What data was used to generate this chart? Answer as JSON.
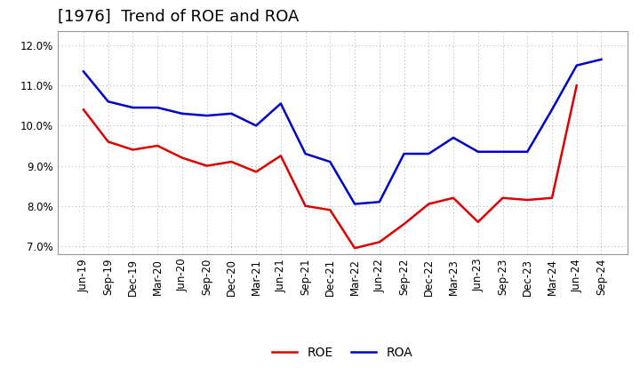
{
  "title": "[1976]  Trend of ROE and ROA",
  "labels": [
    "Jun-19",
    "Sep-19",
    "Dec-19",
    "Mar-20",
    "Jun-20",
    "Sep-20",
    "Dec-20",
    "Mar-21",
    "Jun-21",
    "Sep-21",
    "Dec-21",
    "Mar-22",
    "Jun-22",
    "Sep-22",
    "Dec-22",
    "Mar-23",
    "Jun-23",
    "Sep-23",
    "Dec-23",
    "Mar-24",
    "Jun-24",
    "Sep-24"
  ],
  "ROE": [
    10.4,
    9.6,
    9.4,
    9.5,
    9.2,
    9.0,
    9.1,
    8.85,
    9.25,
    8.0,
    7.9,
    6.95,
    7.1,
    7.55,
    8.05,
    8.2,
    7.6,
    8.2,
    8.15,
    8.2,
    11.0,
    null
  ],
  "ROA": [
    11.35,
    10.6,
    10.45,
    10.45,
    10.3,
    10.25,
    10.3,
    10.0,
    10.55,
    9.3,
    9.1,
    8.05,
    8.1,
    9.3,
    9.3,
    9.7,
    9.35,
    9.35,
    9.35,
    10.4,
    11.5,
    11.65
  ],
  "ROE_color": "#dd0000",
  "ROA_color": "#0000cc",
  "bg_color": "#ffffff",
  "plot_bg_color": "#ffffff",
  "grid_color": "#aaaaaa",
  "ylim": [
    6.8,
    12.35
  ],
  "yticks": [
    7.0,
    8.0,
    9.0,
    10.0,
    11.0,
    12.0
  ],
  "title_fontsize": 13,
  "legend_fontsize": 10,
  "tick_fontsize": 8.5,
  "line_width": 1.8
}
